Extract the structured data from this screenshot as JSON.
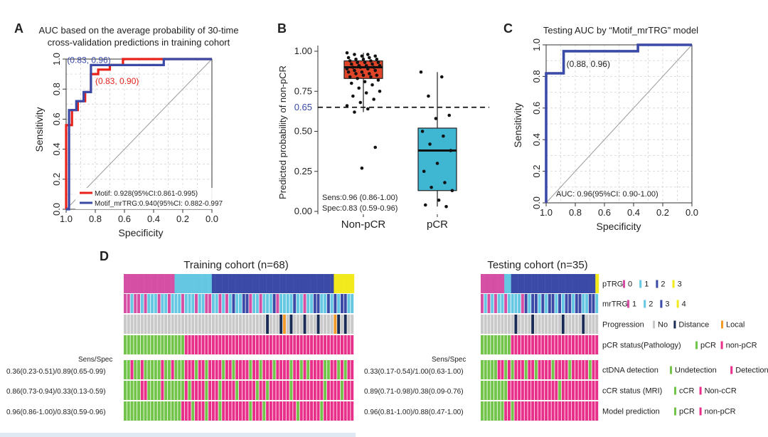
{
  "colors": {
    "red": "#e8221b",
    "blue": "#3a4aa6",
    "box_red": "#e0452a",
    "box_teal": "#3fb6d2",
    "gray": "#b0b0b0",
    "pink": "#d54fa5",
    "light_blue": "#65c7e1",
    "dark_blue": "#3a4aa6",
    "yellow": "#f2ea1c",
    "green": "#72c54a",
    "magenta": "#e8308a",
    "navy": "#1a2c55",
    "orange": "#f29a2a",
    "no_gray": "#c9c9c9"
  },
  "chart_data": [
    {
      "panel": "A",
      "type": "line",
      "title": "AUC based on the average probability of 30-time cross-validation predictions in training cohort",
      "xlabel": "Specificity",
      "ylabel": "Sensitivity",
      "xlim": [
        1.0,
        0.0
      ],
      "ylim": [
        0.0,
        1.0
      ],
      "xticks": [
        "1.0",
        "0.8",
        "0.6",
        "0.4",
        "0.2",
        "0.0"
      ],
      "yticks": [
        "0.0",
        "0.2",
        "0.4",
        "0.6",
        "0.8",
        "1.0"
      ],
      "grid": true,
      "series": [
        {
          "name": "Motif",
          "legend": "Motif: 0.928(95%CI:0.861-0.995)",
          "color": "#e8221b",
          "x": [
            1.0,
            1.0,
            0.96,
            0.96,
            0.92,
            0.92,
            0.87,
            0.87,
            0.83,
            0.83,
            0.78,
            0.78,
            0.7,
            0.7,
            0.61,
            0.61,
            0.0
          ],
          "y": [
            0.0,
            0.56,
            0.56,
            0.66,
            0.66,
            0.72,
            0.72,
            0.78,
            0.78,
            0.9,
            0.9,
            0.93,
            0.93,
            0.96,
            0.96,
            1.0,
            1.0
          ]
        },
        {
          "name": "Motif_mrTRG",
          "legend": "Motif_mrTRG:0.940(95%CI: 0.882-0.997",
          "color": "#3a4aa6",
          "x": [
            1.0,
            0.98,
            0.98,
            0.93,
            0.93,
            0.88,
            0.88,
            0.83,
            0.83,
            0.33,
            0.33,
            0.0
          ],
          "y": [
            0.0,
            0.0,
            0.66,
            0.66,
            0.72,
            0.72,
            0.78,
            0.78,
            0.96,
            0.96,
            1.0,
            1.0
          ]
        }
      ],
      "annotations": [
        {
          "text": "(0.83, 0.96)",
          "x": 0.83,
          "y": 0.96,
          "color": "#3a4aa6"
        },
        {
          "text": "(0.83, 0.90)",
          "x": 0.83,
          "y": 0.9,
          "color": "#e8221b"
        }
      ]
    },
    {
      "panel": "B",
      "type": "box",
      "ylabel": "Predicted probability of non-pCR",
      "categories": [
        "Non-pCR",
        "pCR"
      ],
      "ylim": [
        0.0,
        1.0
      ],
      "yticks": [
        "0.00",
        "0.25",
        "0.50",
        "0.75",
        "1.00"
      ],
      "boxes": [
        {
          "name": "Non-pCR",
          "color": "#e0452a",
          "min": 0.62,
          "q1": 0.83,
          "median": 0.9,
          "q3": 0.94,
          "max": 0.99,
          "points": [
            0.99,
            0.98,
            0.98,
            0.97,
            0.97,
            0.96,
            0.96,
            0.95,
            0.95,
            0.95,
            0.94,
            0.94,
            0.93,
            0.93,
            0.93,
            0.92,
            0.92,
            0.91,
            0.91,
            0.91,
            0.9,
            0.9,
            0.9,
            0.89,
            0.89,
            0.88,
            0.88,
            0.87,
            0.87,
            0.86,
            0.86,
            0.85,
            0.85,
            0.84,
            0.84,
            0.83,
            0.82,
            0.81,
            0.8,
            0.79,
            0.77,
            0.75,
            0.74,
            0.72,
            0.7,
            0.68,
            0.66,
            0.64,
            0.62,
            0.4,
            0.27
          ]
        },
        {
          "name": "pCR",
          "color": "#3fb6d2",
          "min": 0.03,
          "q1": 0.13,
          "median": 0.38,
          "q3": 0.52,
          "max": 0.87,
          "points": [
            0.87,
            0.84,
            0.72,
            0.6,
            0.58,
            0.5,
            0.47,
            0.42,
            0.38,
            0.3,
            0.25,
            0.18,
            0.15,
            0.13,
            0.07,
            0.04,
            0.03
          ]
        }
      ],
      "threshold": {
        "value": 0.65,
        "label": "0.65"
      },
      "annotations": [
        "Sens:0.96 (0.86-1.00)",
        "Spec:0.83 (0.59-0.96)"
      ]
    },
    {
      "panel": "C",
      "type": "line",
      "title": "Testing AUC by “Motif_mrTRG” model",
      "xlabel": "Specificity",
      "ylabel": "Sensitivity",
      "xlim": [
        1.0,
        0.0
      ],
      "ylim": [
        0.0,
        1.0
      ],
      "xticks": [
        "1.0",
        "0.8",
        "0.6",
        "0.4",
        "0.2",
        "0.0"
      ],
      "yticks": [
        "0.0",
        "0.2",
        "0.4",
        "0.6",
        "0.8",
        "1.0"
      ],
      "grid": true,
      "series": [
        {
          "name": "Motif_mrTRG",
          "color": "#3a4aa6",
          "x": [
            1.0,
            1.0,
            0.88,
            0.88,
            0.37,
            0.37,
            0.0
          ],
          "y": [
            0.0,
            0.82,
            0.82,
            0.96,
            0.96,
            1.0,
            1.0
          ]
        }
      ],
      "annotations": [
        {
          "text": "(0.88, 0.96)",
          "x": 0.88,
          "y": 0.96
        }
      ],
      "auc_text": "AUC: 0.96(95%CI: 0.90-1.00)"
    },
    {
      "panel": "D",
      "type": "heatmap",
      "legend_rows": [
        {
          "name": "pTRG",
          "items": [
            {
              "label": "0",
              "color": "#d54fa5"
            },
            {
              "label": "1",
              "color": "#65c7e1"
            },
            {
              "label": "2",
              "color": "#3a4aa6"
            },
            {
              "label": "3",
              "color": "#f2ea1c"
            }
          ]
        },
        {
          "name": "mrTRG",
          "items": [
            {
              "label": "1",
              "color": "#d54fa5"
            },
            {
              "label": "2",
              "color": "#65c7e1"
            },
            {
              "label": "3",
              "color": "#3a4aa6"
            },
            {
              "label": "4",
              "color": "#f2ea1c"
            }
          ]
        },
        {
          "name": "Progression",
          "items": [
            {
              "label": "No",
              "color": "#c9c9c9"
            },
            {
              "label": "Distance",
              "color": "#1a2c55"
            },
            {
              "label": "Local",
              "color": "#f29a2a"
            }
          ]
        },
        {
          "name": "pCR status(Pathology)",
          "items": [
            {
              "label": "pCR",
              "color": "#72c54a"
            },
            {
              "label": "non-pCR",
              "color": "#e8308a"
            }
          ]
        },
        {
          "name": "ctDNA detection",
          "items": [
            {
              "label": "Undetection",
              "color": "#72c54a"
            },
            {
              "label": "Detection",
              "color": "#e8308a"
            }
          ]
        },
        {
          "name": "cCR status (MRI)",
          "items": [
            {
              "label": "cCR",
              "color": "#72c54a"
            },
            {
              "label": "Non-cCR",
              "color": "#e8308a"
            }
          ]
        },
        {
          "name": "Model prediction",
          "items": [
            {
              "label": "pCR",
              "color": "#72c54a"
            },
            {
              "label": "non-pCR",
              "color": "#e8308a"
            }
          ]
        }
      ],
      "cohorts": [
        {
          "title": "Training cohort (n=68)",
          "n": 68,
          "sens_spec_header": "Sens/Spec",
          "sens_spec": [
            "0.36(0.23-0.51)/0.89(0.65-0.99)",
            "0.86(0.73-0.94)/0.33(0.13-0.59)",
            "0.96(0.86-1.00)/0.83(0.59-0.96)"
          ],
          "rows": {
            "pTRG": "000000000000000111111111112222222222222222222222222222222222223333333",
            "mrTRG": "11211212221221222122212211221212322331221222312222322122332232323322",
            "Progression": "NNNNNNNNNNNNNNNNNNNNNNNNNNNNNNNNNNNNNNNNNNDNNNDLNDNNNDNNNDNNNNLDNDNNDN",
            "pCR": "PPPPPPPPPPPPPPPPPPNNNNNNNNNNNNNNNNNNNNNNNNNNNNNNNNNNNNNNNNNNNNNNNNNN",
            "ctDNA": "UUDUUDUUUUUDUUDUUUDDDUDDUDDDDUDDUDDDDUDDUDDDUDDDDUDDUDUDDDDUUDDUDUDD",
            "cCR": "CCCCCNNCCCCNCCCCCCNCNNNNCNNNCNNNNCNNNNNCNNCNNNNNNCNNNNNNNNNCNNNNCNNN",
            "model": "PPPPPPPPPPPPPPPPPNNNPNNNPNNNPNNNNNNNNPNNNPNNNNNNNNNPNNNNNNPNNNNNNNNN"
          }
        },
        {
          "title": "Testing cohort (n=35)",
          "n": 35,
          "sens_spec_header": "Sens/Spec",
          "sens_spec": [
            "0.33(0.17-0.54)/1.00(0.63-1.00)",
            "0.89(0.71-0.98)/0.38(0.09-0.76)",
            "0.96(0.81-1.00)/0.88(0.47-1.00)"
          ],
          "rows": {
            "pTRG": "00000001122222222222222222222222223",
            "mrTRG": "12121221222213233232332323323322332",
            "Progression": "NNNNNNNNNNDNNNNDNNNNNNNNDNNNNNDNNNN",
            "pCR": "PPPPPPPPPNNNNNNNNNNNNNNNNNNNNNNNNNN",
            "ctDNA": "UUUUUDDUDUDDDUDDUDDDDUDDDDUDDDDDUDD",
            "cCR": "CCCCCCCCNNNNNNNNNNNNNNNCNNNNNNNNNNN",
            "model": "PPPPPPPNNPNNNNNNNNNNNNNNNNNNNNNNNNN"
          }
        }
      ]
    }
  ]
}
